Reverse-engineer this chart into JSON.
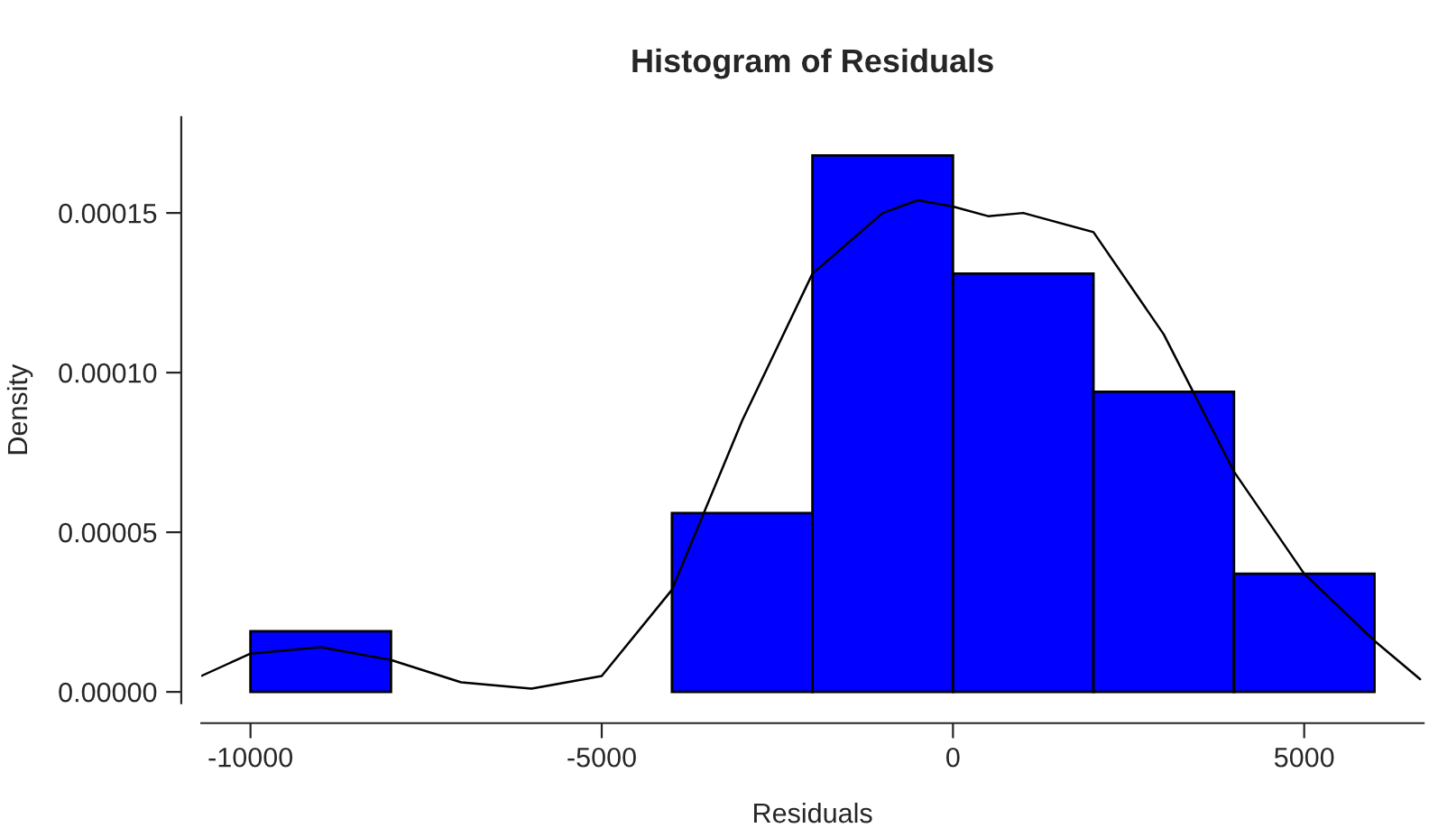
{
  "chart_data": {
    "type": "histogram",
    "title": "Histogram of Residuals",
    "xlabel": "Residuals",
    "ylabel": "Density",
    "bins": [
      -10000,
      -8000,
      -6000,
      -4000,
      -2000,
      0,
      2000,
      4000,
      6000
    ],
    "values": [
      1.9e-05,
      0,
      0,
      5.6e-05,
      0.000168,
      0.000131,
      9.4e-05,
      3.7e-05
    ],
    "color": "#0000ff",
    "series": [
      {
        "type": "line",
        "color": "#000000",
        "x": [
          -10700,
          -10000,
          -9000,
          -8000,
          -7000,
          -6000,
          -5000,
          -4000,
          -3000,
          -2000,
          -1000,
          -500,
          0,
          500,
          1000,
          2000,
          3000,
          4000,
          5000,
          6000,
          6650
        ],
        "values": [
          5e-06,
          1.2e-05,
          1.4e-05,
          1e-05,
          3e-06,
          1e-06,
          5e-06,
          3.2e-05,
          8.5e-05,
          0.000131,
          0.00015,
          0.000154,
          0.000152,
          0.000149,
          0.00015,
          0.000144,
          0.000112,
          6.9e-05,
          3.7e-05,
          1.6e-05,
          4e-06
        ]
      }
    ],
    "xlim": [
      -10700,
      6700
    ],
    "ylim": [
      -3.5e-06,
      0.00018
    ],
    "xticks": [
      -10000,
      -5000,
      0,
      5000
    ],
    "yticks": [
      {
        "value": 0,
        "label": "0.00000"
      },
      {
        "value": 5e-05,
        "label": "0.00005"
      },
      {
        "value": 0.0001,
        "label": "0.00010"
      },
      {
        "value": 0.00015,
        "label": "0.00015"
      }
    ],
    "grid": false,
    "legend": false
  }
}
